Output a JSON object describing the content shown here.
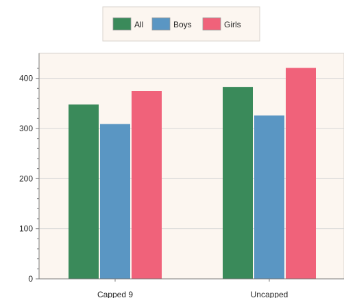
{
  "chart_data": {
    "type": "bar",
    "categories": [
      "Capped 9",
      "Uncapped"
    ],
    "series": [
      {
        "name": "All",
        "values": [
          348,
          383
        ],
        "color": "#3a8a5a"
      },
      {
        "name": "Boys",
        "values": [
          309,
          326
        ],
        "color": "#5a96c3"
      },
      {
        "name": "Girls",
        "values": [
          375,
          421
        ],
        "color": "#f0627a"
      }
    ],
    "yticks": [
      0,
      100,
      200,
      300,
      400
    ],
    "ylim": [
      0,
      450
    ],
    "grid": true,
    "legend_position": "top-center",
    "colors": {
      "plot_background": "#fcf6f0",
      "legend_background": "#fcf6f0",
      "border": "#d9d3cc",
      "grid": "#d6d6d6",
      "axis": "#7a7a7a"
    }
  }
}
